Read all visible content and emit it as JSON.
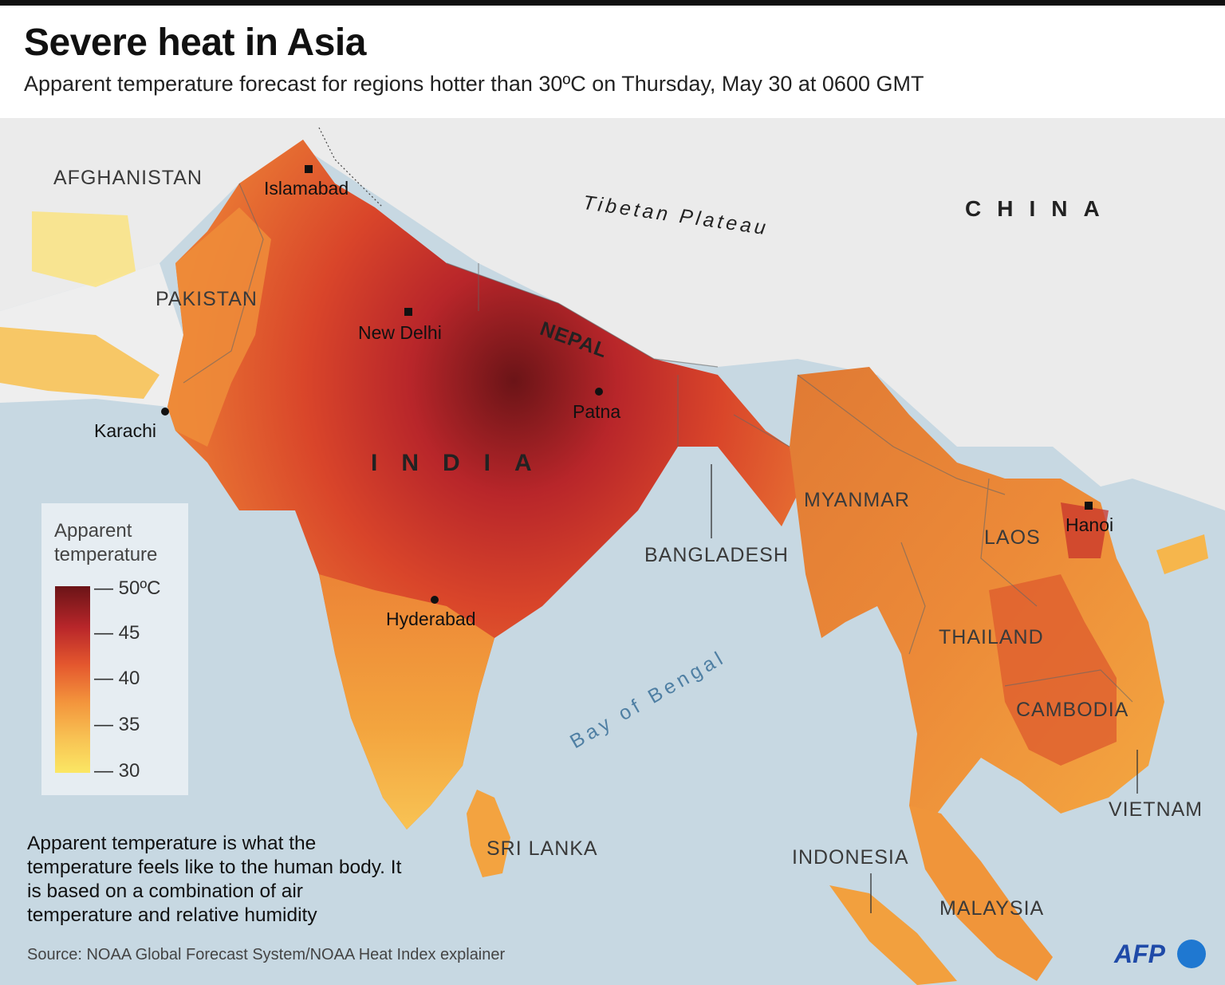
{
  "title": "Severe heat in Asia",
  "subtitle": "Apparent temperature forecast for regions hotter than 30ºC on Thursday, May 30 at 0600 GMT",
  "map": {
    "countries": {
      "afghanistan": "AFGHANISTAN",
      "pakistan": "PAKISTAN",
      "nepal": "NEPAL",
      "china": "CHINA",
      "india": "INDIA",
      "myanmar": "MYANMAR",
      "bangladesh": "BANGLADESH",
      "laos": "LAOS",
      "thailand": "THAILAND",
      "cambodia": "CAMBODIA",
      "vietnam": "VIETNAM",
      "sri_lanka": "SRI LANKA",
      "indonesia": "INDONESIA",
      "malaysia": "MALAYSIA"
    },
    "cities": {
      "islamabad": "Islamabad",
      "new_delhi": "New Delhi",
      "patna": "Patna",
      "karachi": "Karachi",
      "hyderabad": "Hyderabad",
      "hanoi": "Hanoi"
    },
    "features": {
      "tibetan_plateau": "Tibetan Plateau",
      "bay_of_bengal": "Bay of Bengal"
    },
    "colors": {
      "sea": "#c7d8e2",
      "land": "#ebebeb",
      "heat_50": "#6b1417",
      "heat_45": "#b8262a",
      "heat_40": "#e4572e",
      "heat_35": "#f8c354",
      "heat_30": "#fbe764"
    }
  },
  "legend": {
    "title_line1": "Apparent",
    "title_line2": "temperature",
    "ticks": [
      "— 50ºC",
      "— 45",
      "— 40",
      "— 35",
      "— 30"
    ]
  },
  "note": "Apparent temperature is what the temperature feels like to the human body. It is based on a combination of air temperature and relative humidity",
  "source": "Source: NOAA Global Forecast System/NOAA Heat Index explainer",
  "logo": "AFP"
}
